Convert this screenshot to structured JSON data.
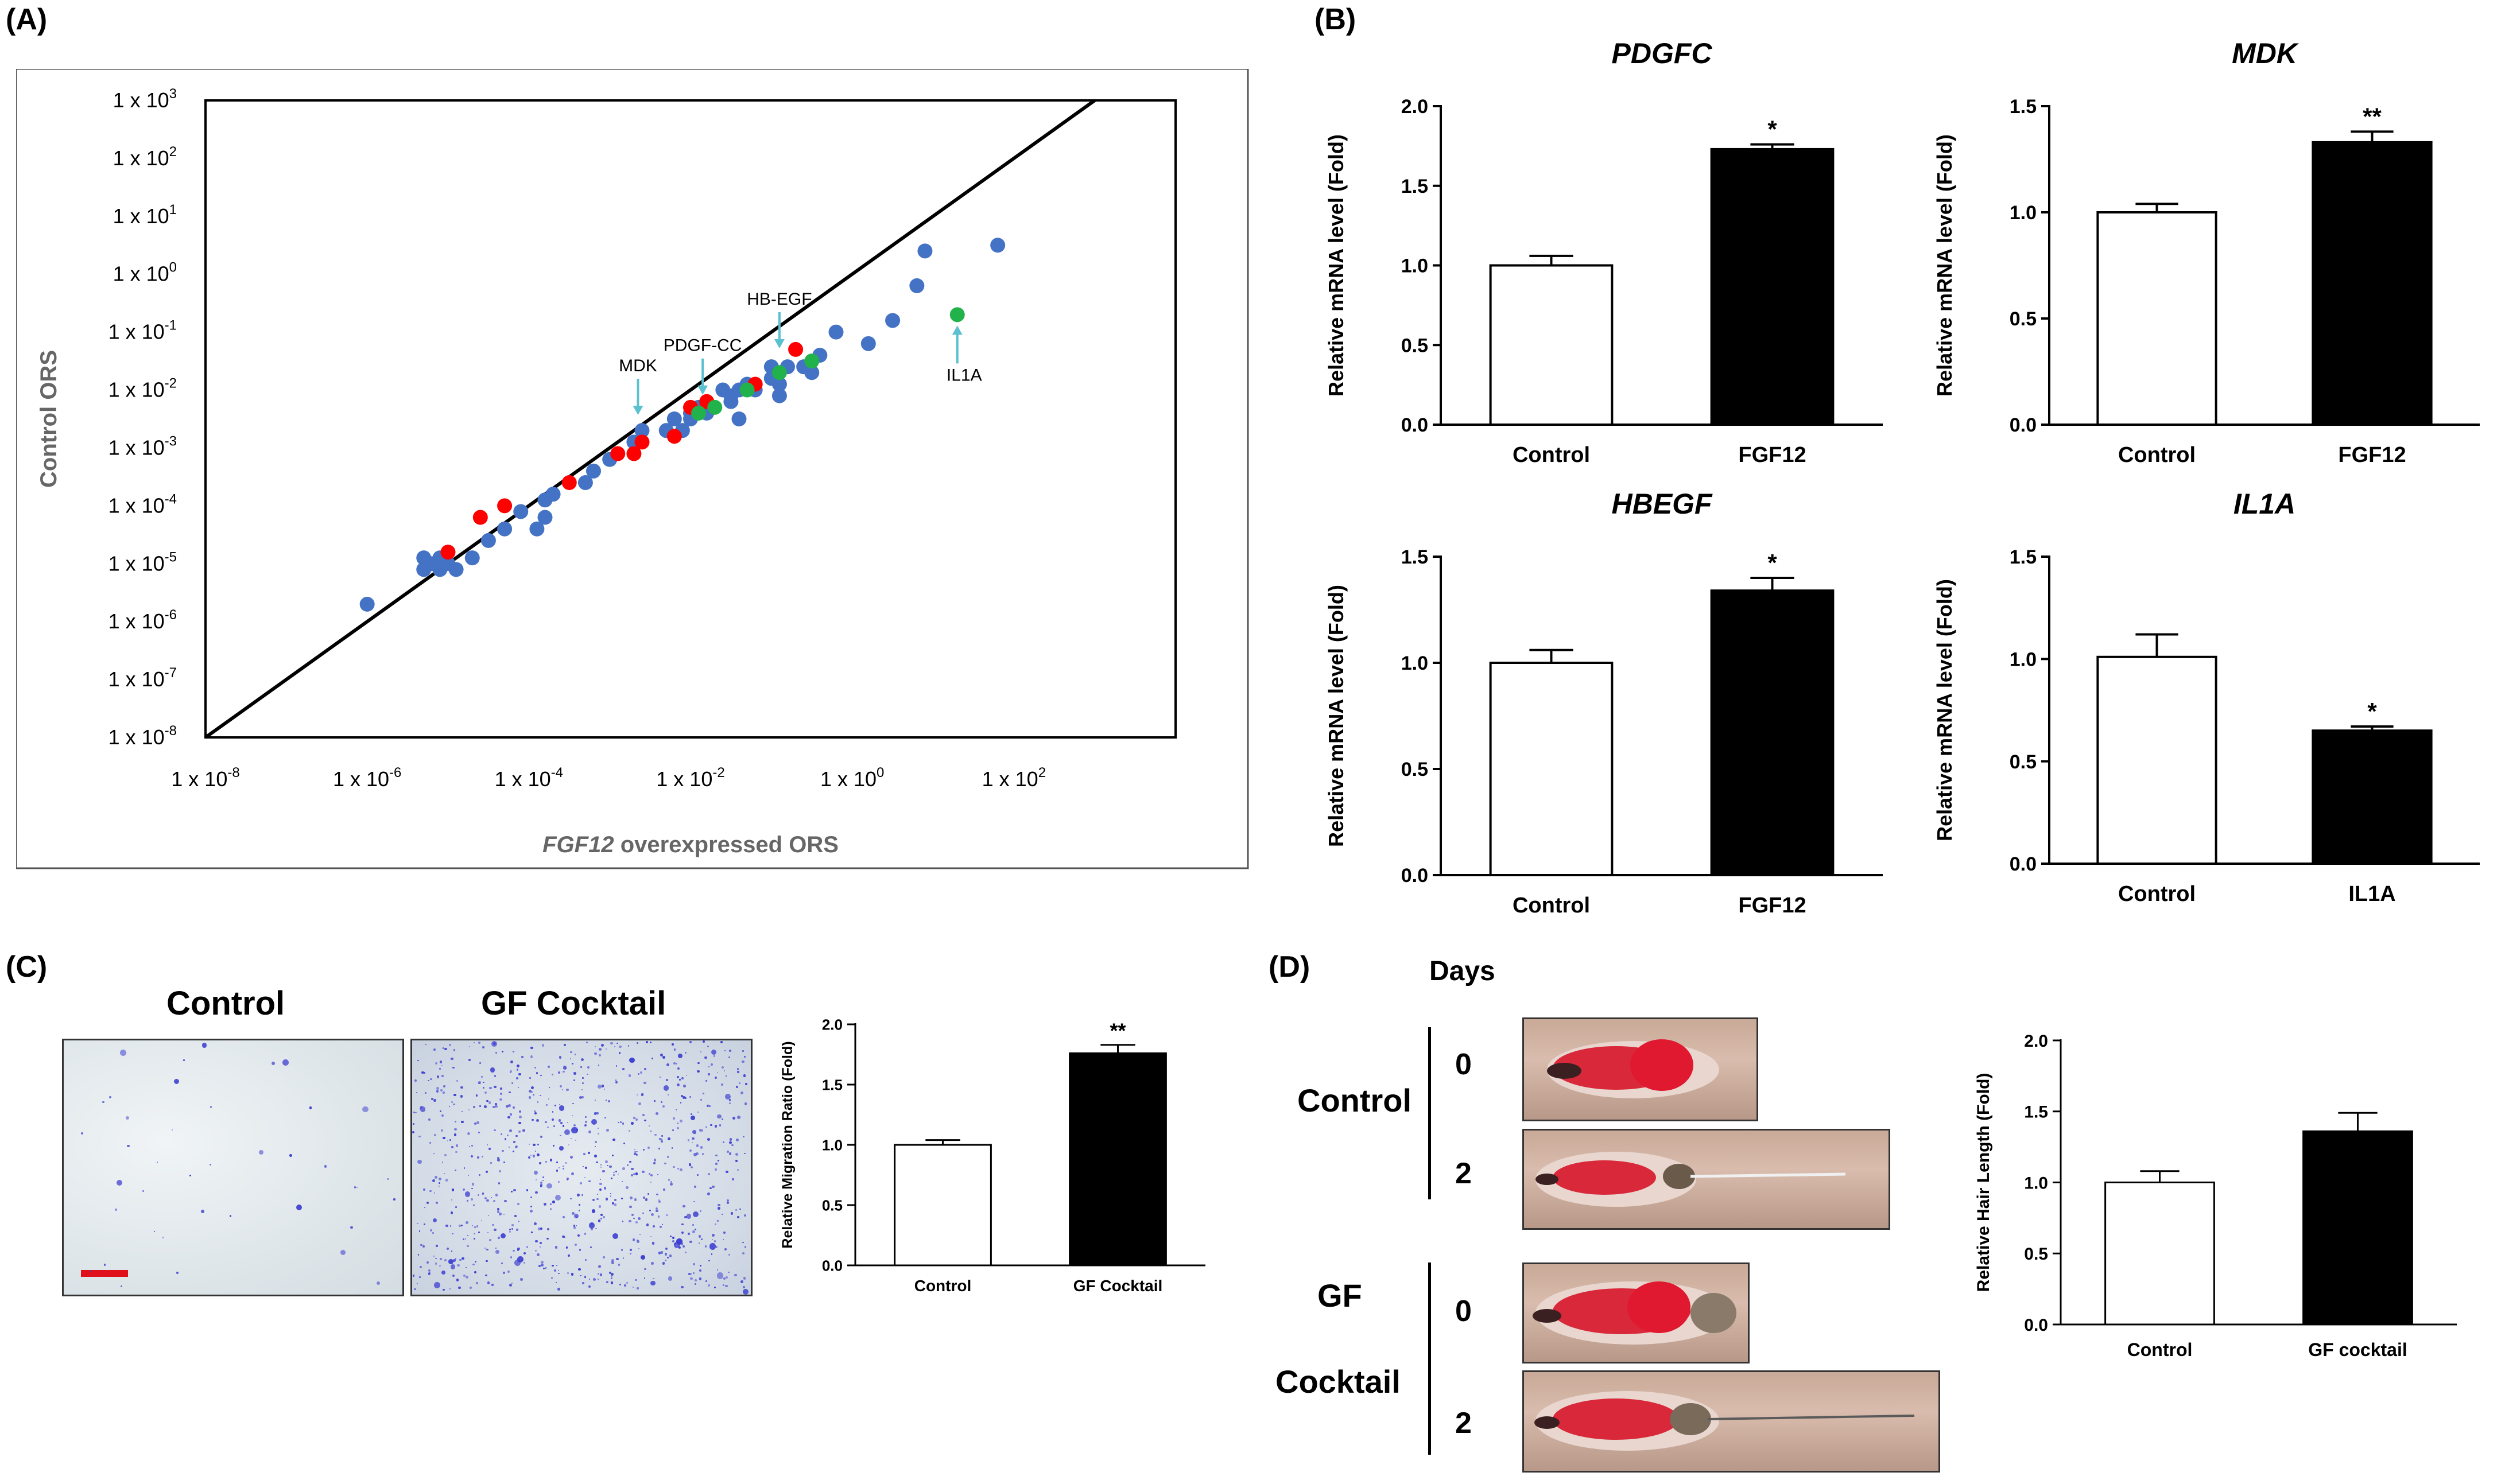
{
  "colors": {
    "blue": "#4472c4",
    "red": "#ff0000",
    "green": "#21b24b",
    "arrow": "#5bc0d0",
    "bar_fill_dark": "#000000",
    "bar_fill_light": "#ffffff"
  },
  "panels": {
    "a": "(A)",
    "b": "(B)",
    "c": "(C)",
    "d": "(D)"
  },
  "chart_data": [
    {
      "id": "A",
      "type": "scatter",
      "xlabel_italic": "FGF12",
      "xlabel_rest": " overexpressed ORS",
      "ylabel": "Control ORS",
      "x_scale": "log10",
      "y_scale": "log10",
      "xlim_exp": [
        -8,
        4
      ],
      "ylim_exp": [
        -8,
        3
      ],
      "x_ticks": [
        {
          "exp": -8,
          "label": "1 x 10-8"
        },
        {
          "exp": -6,
          "label": "1 x 10-6"
        },
        {
          "exp": -4,
          "label": "1 x 10-4"
        },
        {
          "exp": -2,
          "label": "1 x 10-2"
        },
        {
          "exp": 0,
          "label": "1 x 100"
        },
        {
          "exp": 2,
          "label": "1 x 102"
        }
      ],
      "y_ticks": [
        {
          "exp": 3,
          "label": "1 x 103"
        },
        {
          "exp": 2,
          "label": "1 x 102"
        },
        {
          "exp": 1,
          "label": "1 x 101"
        },
        {
          "exp": 0,
          "label": "1 x 100"
        },
        {
          "exp": -1,
          "label": "1 x 10-1"
        },
        {
          "exp": -2,
          "label": "1 x 10-2"
        },
        {
          "exp": -3,
          "label": "1 x 10-3"
        },
        {
          "exp": -4,
          "label": "1 x 10-4"
        },
        {
          "exp": -5,
          "label": "1 x 10-5"
        },
        {
          "exp": -6,
          "label": "1 x 10-6"
        },
        {
          "exp": -7,
          "label": "1 x 10-7"
        },
        {
          "exp": -8,
          "label": "1 x 10-8"
        }
      ],
      "diagonal": "y = x",
      "series": [
        {
          "name": "blue",
          "points": [
            [
              -6.0,
              -5.7
            ],
            [
              -5.3,
              -4.9
            ],
            [
              -5.3,
              -5.1
            ],
            [
              -5.2,
              -5.0
            ],
            [
              -5.1,
              -4.9
            ],
            [
              -5.1,
              -5.1
            ],
            [
              -5.0,
              -5.0
            ],
            [
              -4.9,
              -5.1
            ],
            [
              -4.7,
              -4.9
            ],
            [
              -4.5,
              -4.6
            ],
            [
              -4.3,
              -4.4
            ],
            [
              -4.1,
              -4.1
            ],
            [
              -3.9,
              -4.4
            ],
            [
              -3.8,
              -4.2
            ],
            [
              -3.8,
              -3.9
            ],
            [
              -3.7,
              -3.8
            ],
            [
              -3.3,
              -3.6
            ],
            [
              -3.2,
              -3.4
            ],
            [
              -3.0,
              -3.2
            ],
            [
              -2.7,
              -2.9
            ],
            [
              -2.6,
              -2.7
            ],
            [
              -2.3,
              -2.7
            ],
            [
              -2.2,
              -2.5
            ],
            [
              -2.1,
              -2.7
            ],
            [
              -2.0,
              -2.4
            ],
            [
              -2.0,
              -2.5
            ],
            [
              -1.9,
              -2.3
            ],
            [
              -1.8,
              -2.4
            ],
            [
              -1.6,
              -2.0
            ],
            [
              -1.5,
              -2.1
            ],
            [
              -1.5,
              -2.2
            ],
            [
              -1.4,
              -2.0
            ],
            [
              -1.3,
              -1.9
            ],
            [
              -1.2,
              -2.0
            ],
            [
              -0.9,
              -2.1
            ],
            [
              -1.0,
              -1.6
            ],
            [
              -0.9,
              -1.9
            ],
            [
              -0.8,
              -1.6
            ],
            [
              -0.6,
              -1.6
            ],
            [
              -0.5,
              -1.7
            ],
            [
              -0.2,
              -1.0
            ],
            [
              0.5,
              -0.8
            ],
            [
              0.2,
              -1.2
            ],
            [
              0.8,
              -0.2
            ],
            [
              0.9,
              0.4
            ],
            [
              -0.4,
              -1.4
            ],
            [
              -1.0,
              -1.8
            ],
            [
              1.8,
              0.5
            ],
            [
              -1.4,
              -2.5
            ]
          ]
        },
        {
          "name": "red",
          "points": [
            [
              -5.0,
              -4.8
            ],
            [
              -4.6,
              -4.2
            ],
            [
              -4.3,
              -4.0
            ],
            [
              -3.5,
              -3.6
            ],
            [
              -2.9,
              -3.1
            ],
            [
              -2.7,
              -3.1
            ],
            [
              -2.6,
              -2.9
            ],
            [
              -2.2,
              -2.8
            ],
            [
              -2.0,
              -2.3
            ],
            [
              -1.8,
              -2.2
            ],
            [
              -1.2,
              -1.9
            ],
            [
              -0.7,
              -1.3
            ]
          ]
        },
        {
          "name": "green",
          "points": [
            [
              -1.7,
              -2.3
            ],
            [
              -1.9,
              -2.4
            ],
            [
              -1.3,
              -2.0
            ],
            [
              -0.9,
              -1.7
            ],
            [
              -0.5,
              -1.5
            ],
            [
              1.3,
              -0.7
            ]
          ]
        }
      ],
      "annotations": [
        {
          "label": "MDK",
          "x_exp": -2.65,
          "y_exp": -2.55
        },
        {
          "label": "PDGF-CC",
          "x_exp": -1.85,
          "y_exp": -2.2
        },
        {
          "label": "HB-EGF",
          "x_exp": -0.9,
          "y_exp": -1.4
        },
        {
          "label": "IL1A",
          "x_exp": 1.3,
          "y_exp": -0.75
        }
      ]
    },
    {
      "id": "B1",
      "type": "bar",
      "title": "PDGFC",
      "ylabel": "Relative mRNA level (Fold)",
      "categories": [
        "Control",
        "FGF12"
      ],
      "values": [
        1.0,
        1.73
      ],
      "errors": [
        0.06,
        0.03
      ],
      "ylim": [
        0.0,
        2.0
      ],
      "yticks": [
        "0.0",
        "0.5",
        "1.0",
        "1.5",
        "2.0"
      ],
      "significance": [
        "",
        "*"
      ]
    },
    {
      "id": "B2",
      "type": "bar",
      "title": "MDK",
      "ylabel": "Relative mRNA level (Fold)",
      "categories": [
        "Control",
        "FGF12"
      ],
      "values": [
        1.0,
        1.33
      ],
      "errors": [
        0.04,
        0.05
      ],
      "ylim": [
        0.0,
        1.5
      ],
      "yticks": [
        "0.0",
        "0.5",
        "1.0",
        "1.5"
      ],
      "significance": [
        "",
        "**"
      ]
    },
    {
      "id": "B3",
      "type": "bar",
      "title": "HBEGF",
      "ylabel": "Relative mRNA level (Fold)",
      "categories": [
        "Control",
        "FGF12"
      ],
      "values": [
        1.0,
        1.34
      ],
      "errors": [
        0.06,
        0.06
      ],
      "ylim": [
        0.0,
        1.5
      ],
      "yticks": [
        "0.0",
        "0.5",
        "1.0",
        "1.5"
      ],
      "significance": [
        "",
        "*"
      ]
    },
    {
      "id": "B4",
      "type": "bar",
      "title": "IL1A",
      "ylabel": "Relative mRNA level (Fold)",
      "categories": [
        "Control",
        "IL1A"
      ],
      "values": [
        1.01,
        0.65
      ],
      "errors": [
        0.11,
        0.02
      ],
      "ylim": [
        0.0,
        1.5
      ],
      "yticks": [
        "0.0",
        "0.5",
        "1.0",
        "1.5"
      ],
      "significance": [
        "",
        "*"
      ]
    },
    {
      "id": "C",
      "type": "bar",
      "title": "",
      "ylabel": "Relative Migration Ratio (Fold)",
      "categories": [
        "Control",
        "GF Cocktail"
      ],
      "values": [
        1.0,
        1.76
      ],
      "errors": [
        0.04,
        0.07
      ],
      "ylim": [
        0.0,
        2.0
      ],
      "yticks": [
        "0.0",
        "0.5",
        "1.0",
        "1.5",
        "2.0"
      ],
      "significance": [
        "",
        "**"
      ]
    },
    {
      "id": "D",
      "type": "bar",
      "title": "",
      "ylabel": "Relative Hair Length (Fold)",
      "categories": [
        "Control",
        "GF cocktail"
      ],
      "values": [
        1.0,
        1.36
      ],
      "errors": [
        0.08,
        0.13
      ],
      "ylim": [
        0.0,
        2.0
      ],
      "yticks": [
        "0.0",
        "0.5",
        "1.0",
        "1.5",
        "2.0"
      ],
      "significance": [
        "",
        ""
      ]
    }
  ],
  "panel_c": {
    "control_title": "Control",
    "gf_title": "GF Cocktail"
  },
  "panel_d": {
    "days_label": "Days",
    "control_label": "Control",
    "gf_label_1": "GF",
    "gf_label_2": "Cocktail",
    "day0": "0",
    "day2": "2"
  }
}
